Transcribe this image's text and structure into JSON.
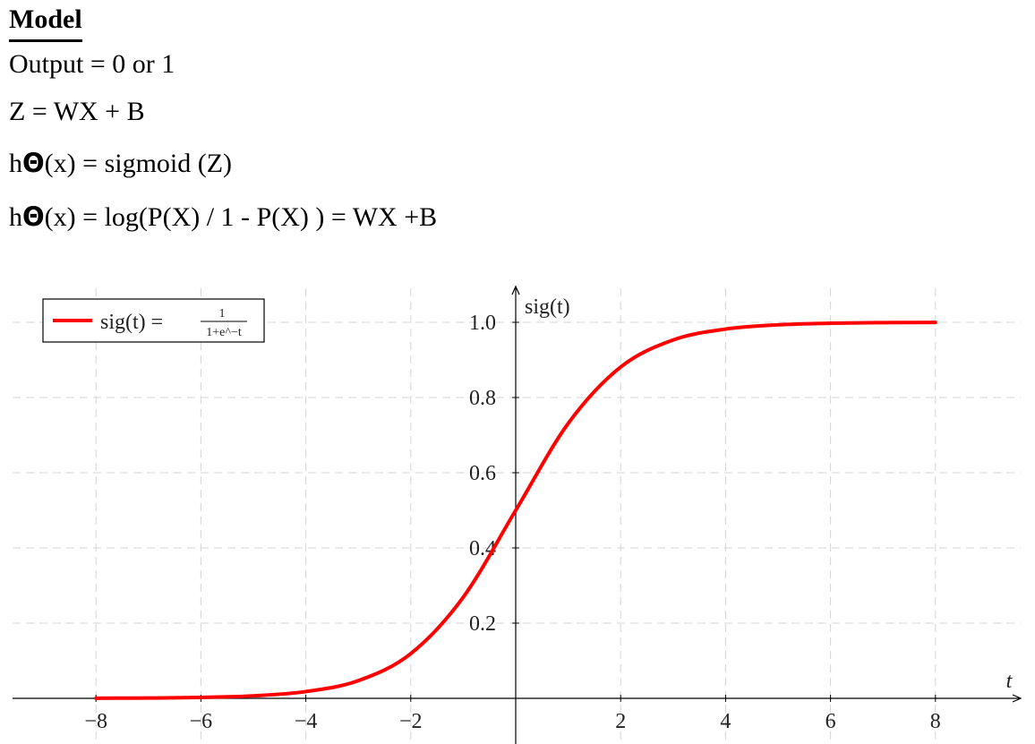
{
  "page": {
    "heading": "Model",
    "equations": [
      "Output = 0 or 1",
      "Z = WX + B",
      "sigmoid (Z)",
      "log(P(X) / 1 - P(X) ) = WX +B"
    ],
    "equation_prefix": {
      "h": "h",
      "theta": "Θ",
      "arg": "(x) = "
    }
  },
  "chart_data": {
    "type": "line",
    "function": "1/(1+exp(-t))",
    "xlabel": "t",
    "ylabel": "sig(t)",
    "xlim": [
      -8.8,
      9.5
    ],
    "ylim": [
      0,
      1.1
    ],
    "x_ticks": [
      -8,
      -6,
      -4,
      -2,
      2,
      4,
      6,
      8
    ],
    "x_tick_labels": [
      "−8",
      "−6",
      "−4",
      "−2",
      "2",
      "4",
      "6",
      "8"
    ],
    "y_ticks": [
      0.2,
      0.4,
      0.6,
      0.8,
      1.0
    ],
    "y_tick_labels": [
      "0.2",
      "0.4",
      "0.6",
      "0.8",
      "1.0"
    ],
    "grid": true,
    "legend_position": "top-left",
    "series": [
      {
        "name": "sig(t) = 1/(1+e^−t)",
        "legend_lhs": "sig(t) =",
        "legend_num": "1",
        "legend_den": "1+e^−t",
        "color": "#ff0000",
        "x": [
          -8,
          -7,
          -6,
          -5,
          -4,
          -3,
          -2,
          -1,
          0,
          1,
          2,
          3,
          4,
          5,
          6,
          7,
          8
        ],
        "y": [
          0.0003,
          0.0009,
          0.0025,
          0.0067,
          0.018,
          0.047,
          0.119,
          0.269,
          0.5,
          0.731,
          0.881,
          0.953,
          0.982,
          0.9933,
          0.9975,
          0.9991,
          0.9997
        ]
      }
    ]
  }
}
